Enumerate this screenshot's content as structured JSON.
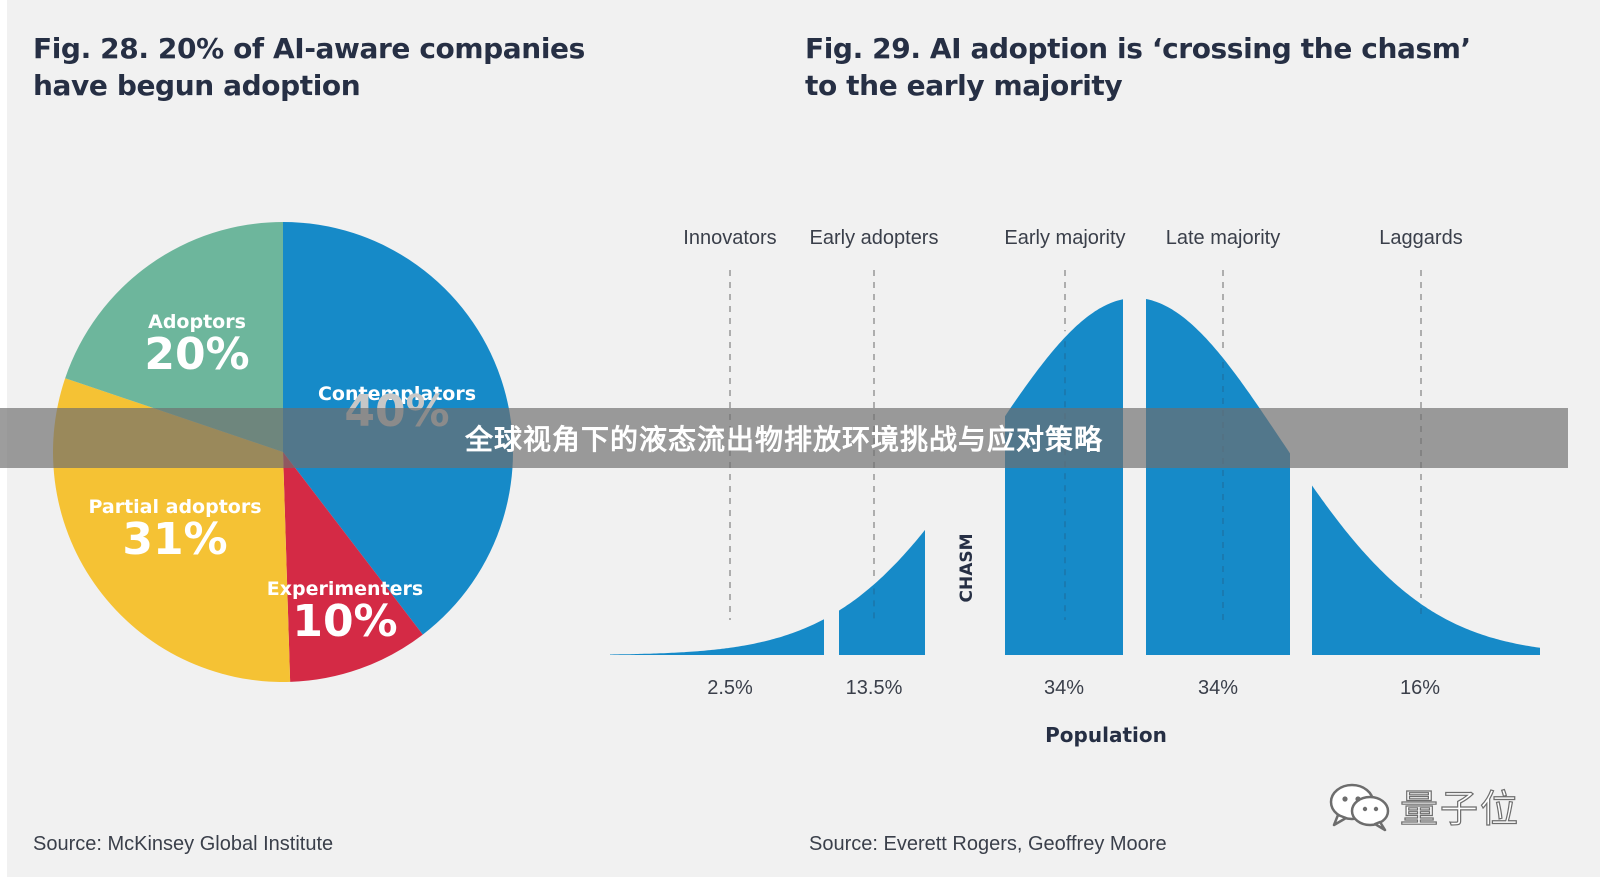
{
  "left_figure": {
    "title_line1": "Fig. 28. 20% of AI-aware companies",
    "title_line2": "have begun adoption",
    "source": "Source: McKinsey Global Institute"
  },
  "right_figure": {
    "title_line1": "Fig. 29. AI adoption is ‘crossing the chasm’",
    "title_line2": "to the early majority",
    "source": "Source: Everett Rogers, Geoffrey Moore"
  },
  "chart_data": [
    {
      "type": "pie",
      "title": "Fig. 28. 20% of AI-aware companies have begun adoption",
      "slices": [
        {
          "label": "Contemplators",
          "value": 40,
          "value_label": "40%",
          "color": "#168ac8"
        },
        {
          "label": "Experimenters",
          "value": 10,
          "value_label": "10%",
          "color": "#d42a45"
        },
        {
          "label": "Partial adoptors",
          "value": 31,
          "value_label": "31%",
          "color": "#f5c234"
        },
        {
          "label": "Adoptors",
          "value": 20,
          "value_label": "20%",
          "color": "#6db69c"
        }
      ]
    },
    {
      "type": "area",
      "title": "Fig. 29. AI adoption is ‘crossing the chasm’ to the early majority",
      "xlabel": "Population",
      "curve": "normal",
      "segments": [
        {
          "label": "Innovators",
          "value": 2.5,
          "value_label": "2.5%"
        },
        {
          "label": "Early adopters",
          "value": 13.5,
          "value_label": "13.5%"
        },
        {
          "label": "Early majority",
          "value": 34,
          "value_label": "34%"
        },
        {
          "label": "Late majority",
          "value": 34,
          "value_label": "34%"
        },
        {
          "label": "Laggards",
          "value": 16,
          "value_label": "16%"
        }
      ],
      "chasm_label": "CHASM",
      "color": "#168ac8"
    }
  ],
  "watermark": {
    "text": "量子位",
    "icon": "wechat-icon"
  },
  "banner": {
    "text": "全球视角下的液态流出物排放环境挑战与应对策略"
  }
}
